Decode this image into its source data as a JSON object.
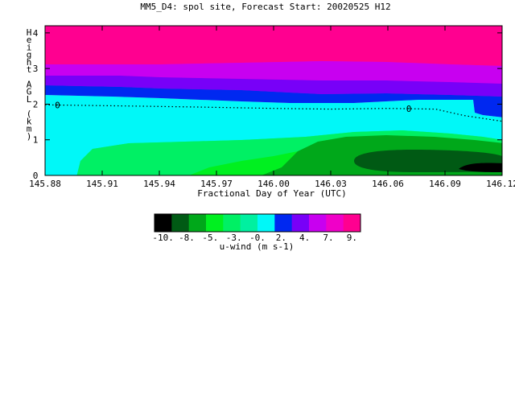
{
  "chart_data": {
    "type": "heatmap",
    "title": "MM5_D4: spol site,  Forecast Start: 20020525 H12",
    "xlabel": "Fractional Day of Year (UTC)",
    "ylabel": "Height AGL (km)",
    "xlim": [
      145.88,
      146.12
    ],
    "ylim": [
      0,
      4.2
    ],
    "x_ticks": [
      "145.88",
      "145.91",
      "145.94",
      "145.97",
      "146.00",
      "146.03",
      "146.06",
      "146.09",
      "146.12"
    ],
    "y_ticks": [
      "0",
      "1",
      "2",
      "3",
      "4"
    ],
    "zero_contour_label": "0",
    "zero_contour": {
      "x": [
        145.88,
        145.92,
        145.96,
        146.0,
        146.03,
        146.06,
        146.085,
        146.1,
        146.12
      ],
      "y": [
        1.98,
        1.95,
        1.92,
        1.88,
        1.86,
        1.88,
        1.86,
        1.68,
        1.52
      ]
    },
    "colorbar": {
      "label": "u-wind (m s-1)",
      "tick_labels": [
        "-10.",
        "-8.",
        "-5.",
        "-3.",
        "-0.",
        "2.",
        "4.",
        "7.",
        "9."
      ],
      "colors": [
        "#000000",
        "#005a14",
        "#00a81a",
        "#00f020",
        "#00f064",
        "#00f0a0",
        "#00f8f8",
        "#0028f0",
        "#7800f8",
        "#c800f0",
        "#f000c8",
        "#ff0090"
      ]
    },
    "regions": [
      {
        "name": "u-wind 7 to 9",
        "color": "#f000c8"
      },
      {
        "name": "u-wind 9 plus",
        "color": "#ff0090"
      },
      {
        "name": "u-wind 4 to 7",
        "color": "#c800f0"
      },
      {
        "name": "u-wind 2 to 4",
        "color": "#7800f8"
      },
      {
        "name": "u-wind 0 to 2",
        "color": "#0028f0"
      },
      {
        "name": "u-wind -3 to 0",
        "color": "#00f8f8"
      },
      {
        "name": "u-wind -3",
        "color": "#00f0a0"
      },
      {
        "name": "u-wind -5 to -3",
        "color": "#00f064"
      },
      {
        "name": "u-wind -5",
        "color": "#00f020"
      },
      {
        "name": "u-wind -8 to -5",
        "color": "#00a81a"
      },
      {
        "name": "u-wind -10 to -8",
        "color": "#005a14"
      },
      {
        "name": "u-wind below -10",
        "color": "#000000"
      }
    ]
  }
}
